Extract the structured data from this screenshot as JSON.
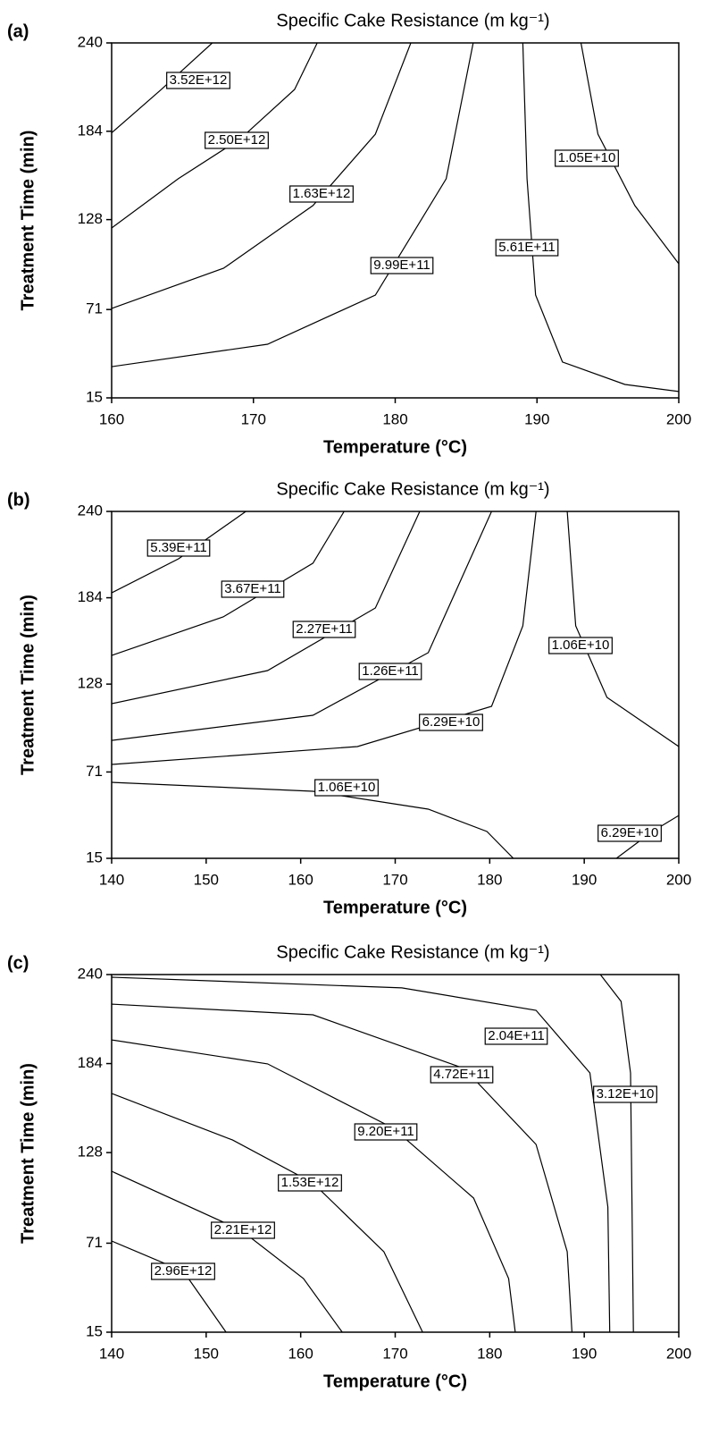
{
  "chart_data": [
    {
      "type": "contour",
      "panel_label": "(a)",
      "title": "Specific Cake Resistance (m kg⁻¹)",
      "x_label": "Temperature (°C)",
      "y_label": "Treatment Time (min)",
      "xlim": [
        160,
        200
      ],
      "xticks": [
        160,
        170,
        180,
        190,
        200
      ],
      "ylim": [
        15,
        240
      ],
      "yticks": [
        15,
        71,
        128,
        184,
        240
      ],
      "contours": [
        {
          "level": 3520000000000.0,
          "label": "3.52E+12",
          "x": [
            160,
            163.5,
            167.1
          ],
          "y": [
            183,
            210.5,
            240
          ]
        },
        {
          "level": 2500000000000.0,
          "label": "2.50E+12",
          "x": [
            160,
            164.7,
            169.1,
            172.9,
            174.5
          ],
          "y": [
            122.7,
            153.9,
            179.4,
            210.5,
            240
          ]
        },
        {
          "level": 1630000000000.0,
          "label": "1.63E+12",
          "x": [
            160,
            167.9,
            174.2,
            178.6,
            181.1
          ],
          "y": [
            71.7,
            97.2,
            136.9,
            182.2,
            240
          ]
        },
        {
          "level": 999000000000.0,
          "label": "9.99E+11",
          "x": [
            160,
            171,
            178.6,
            183.6,
            185.5
          ],
          "y": [
            34.8,
            49,
            80.2,
            153.9,
            240
          ]
        },
        {
          "level": 561000000000.0,
          "label": "5.61E+11",
          "x": [
            189,
            189.3,
            189.9,
            191.8,
            196.2,
            200
          ],
          "y": [
            240,
            153.9,
            80.2,
            37.7,
            23.5,
            19
          ]
        },
        {
          "level": 10500000000.0,
          "label": "1.05E+10",
          "x": [
            193.1,
            194.3,
            196.9,
            200
          ],
          "y": [
            240,
            182.2,
            136.9,
            100
          ]
        }
      ]
    },
    {
      "type": "contour",
      "panel_label": "(b)",
      "title": "Specific Cake Resistance (m kg⁻¹)",
      "x_label": "Temperature (°C)",
      "y_label": "Treatment Time (min)",
      "xlim": [
        140,
        200
      ],
      "xticks": [
        140,
        150,
        160,
        170,
        180,
        190,
        200
      ],
      "ylim": [
        15,
        240
      ],
      "yticks": [
        15,
        71,
        128,
        184,
        240
      ],
      "contours": [
        {
          "level": 539000000000.0,
          "label": "5.39E+11",
          "x": [
            140,
            147.1,
            154.2
          ],
          "y": [
            187.2,
            209.3,
            240
          ]
        },
        {
          "level": 367000000000.0,
          "label": "3.67E+11",
          "x": [
            140,
            151.8,
            161.3,
            164.6
          ],
          "y": [
            146.6,
            171.6,
            206.4,
            240
          ]
        },
        {
          "level": 227000000000.0,
          "label": "2.27E+11",
          "x": [
            140,
            156.5,
            167.9,
            172.6
          ],
          "y": [
            115.3,
            136.8,
            177.4,
            240
          ]
        },
        {
          "level": 126000000000.0,
          "label": "1.26E+11",
          "x": [
            140,
            161.3,
            173.5,
            180.2
          ],
          "y": [
            91.5,
            107.8,
            148.4,
            240
          ]
        },
        {
          "level": 62900000000.0,
          "label": "6.29E+10",
          "x": [
            140,
            166,
            180.2,
            183.5,
            184.9
          ],
          "y": [
            75.9,
            87.5,
            113.6,
            165.8,
            240
          ]
        },
        {
          "level": 10600000000.0,
          "label": "1.06E+10",
          "x": [
            188.2,
            189.1,
            192.4,
            200
          ],
          "y": [
            240,
            165.8,
            119.4,
            87.5
          ]
        },
        {
          "level": 10600000000.0,
          "label": "1.06E+10",
          "x": [
            140,
            161.3,
            173.5,
            179.7,
            182.5
          ],
          "y": [
            64.3,
            58.5,
            46.9,
            32.4,
            15
          ]
        },
        {
          "level": 62900000000.0,
          "label": "6.29E+10",
          "x": [
            193.4,
            197.2,
            200
          ],
          "y": [
            15,
            32.4,
            42.8
          ]
        }
      ]
    },
    {
      "type": "contour",
      "panel_label": "(c)",
      "title": "Specific Cake Resistance (m kg⁻¹)",
      "x_label": "Temperature (°C)",
      "y_label": "Treatment Time (min)",
      "xlim": [
        140,
        200
      ],
      "xticks": [
        140,
        150,
        160,
        170,
        180,
        190,
        200
      ],
      "ylim": [
        15,
        240
      ],
      "yticks": [
        15,
        71,
        128,
        184,
        240
      ],
      "contours": [
        {
          "level": 204000000000.0,
          "label": "2.04E+11",
          "x": [
            140,
            170.7,
            184.9,
            190.6,
            192.5,
            192.7
          ],
          "y": [
            238.3,
            231.6,
            217.5,
            178.1,
            93.8,
            15
          ]
        },
        {
          "level": 472000000000.0,
          "label": "4.72E+11",
          "x": [
            140,
            161.3,
            177.3,
            184.9,
            188.2,
            188.7
          ],
          "y": [
            221.4,
            214.7,
            180.9,
            133.1,
            65.6,
            15
          ]
        },
        {
          "level": 31200000000.0,
          "label": "3.12E+10",
          "x": [
            191.7,
            193.9,
            194.9,
            195.2
          ],
          "y": [
            240,
            223.1,
            178.1,
            15
          ]
        },
        {
          "level": 920000000000.0,
          "label": "9.20E+11",
          "x": [
            140,
            156.5,
            169.8,
            178.3,
            182,
            182.7
          ],
          "y": [
            198.9,
            183.8,
            143.3,
            99.4,
            48.75,
            15
          ]
        },
        {
          "level": 1530000000000.0,
          "label": "1.53E+12",
          "x": [
            140,
            152.8,
            161.3,
            168.8,
            172.9
          ],
          "y": [
            165.2,
            135.9,
            108.9,
            65.6,
            15
          ]
        },
        {
          "level": 2210000000000.0,
          "label": "2.21E+12",
          "x": [
            140,
            153.7,
            160.3,
            164.4
          ],
          "y": [
            116.25,
            79.1,
            48.75,
            15
          ]
        },
        {
          "level": 2960000000000.0,
          "label": "2.96E+12",
          "x": [
            140,
            147.6,
            152.1
          ],
          "y": [
            72.4,
            53.25,
            15
          ]
        }
      ]
    }
  ]
}
